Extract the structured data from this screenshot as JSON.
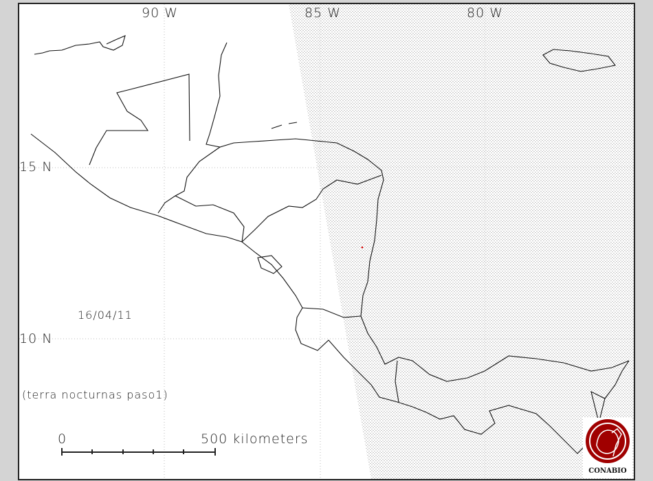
{
  "map": {
    "longitude_labels": [
      "90 W",
      "85 W",
      "80 W"
    ],
    "latitude_labels": [
      "15 N",
      "10 N"
    ],
    "date": "16/04/11",
    "pass_label": "(terra nocturnas paso1)",
    "scale": {
      "start_label": "0",
      "end_label": "500 kilometers",
      "divisions": 5
    },
    "logo_text": "CONABIO",
    "colors": {
      "background": "#ffffff",
      "coast": "#111111",
      "no_data_hatch": "#c8c8c8",
      "fire_hotspot": "#e00000",
      "logo": "#a00000",
      "frame": "#d4d4d4"
    },
    "hotspots": [
      {
        "lon": -84.3,
        "lat": 13.5
      }
    ]
  }
}
